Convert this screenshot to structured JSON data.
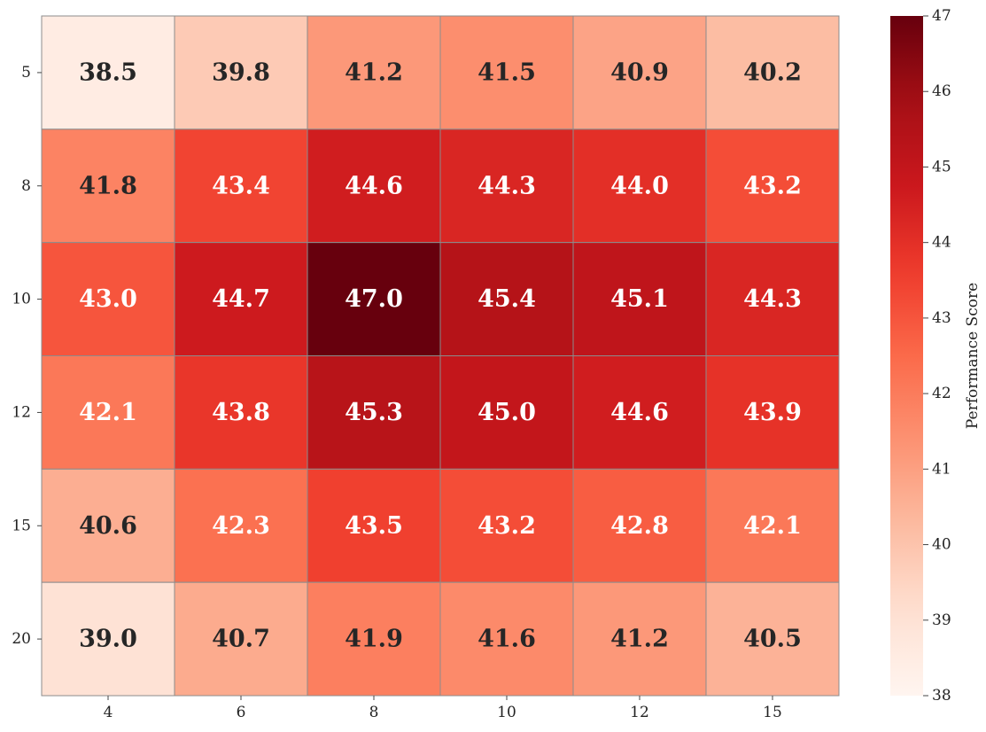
{
  "chart_data": {
    "type": "heatmap",
    "title": "",
    "xlabel": "",
    "ylabel": "",
    "x_categories": [
      "4",
      "6",
      "8",
      "10",
      "12",
      "15"
    ],
    "y_categories": [
      "5",
      "8",
      "10",
      "12",
      "15",
      "20"
    ],
    "values": [
      [
        38.5,
        39.8,
        41.2,
        41.5,
        40.9,
        40.2
      ],
      [
        41.8,
        43.4,
        44.6,
        44.3,
        44.0,
        43.2
      ],
      [
        43.0,
        44.7,
        47.0,
        45.4,
        45.1,
        44.3
      ],
      [
        42.1,
        43.8,
        45.3,
        45.0,
        44.6,
        43.9
      ],
      [
        40.6,
        42.3,
        43.5,
        43.2,
        42.8,
        42.1
      ],
      [
        39.0,
        40.7,
        41.9,
        41.6,
        41.2,
        40.5
      ]
    ],
    "colorbar": {
      "label": "Performance Score",
      "range": [
        38,
        47
      ],
      "ticks": [
        "38",
        "39",
        "40",
        "41",
        "42",
        "43",
        "44",
        "45",
        "46",
        "47"
      ],
      "colormap": "Reds"
    },
    "annotation_decimals": 1
  }
}
